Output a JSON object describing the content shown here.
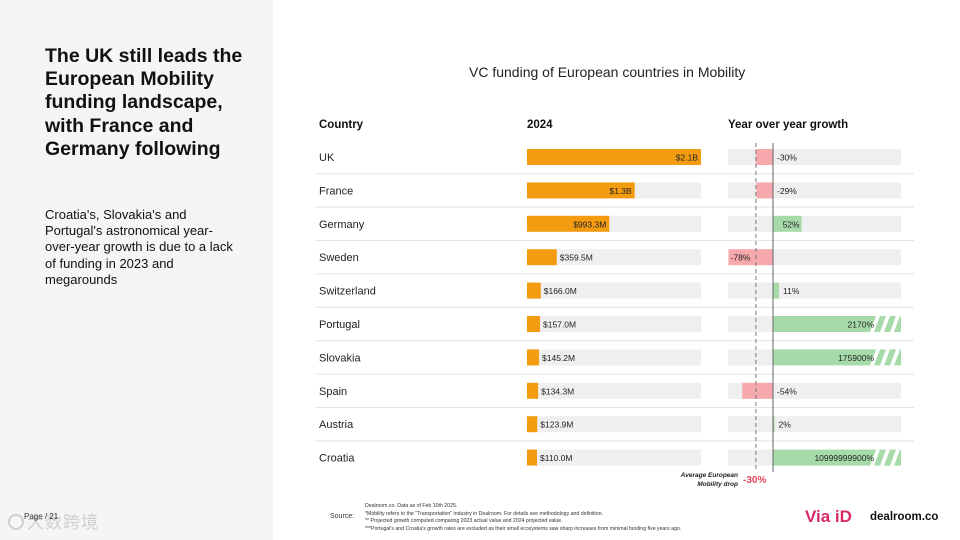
{
  "headline": "The UK still leads the European Mobility funding landscape, with France and Germany following",
  "subtext": "Croatia's, Slovakia's and Portugal's astronomical year-over-year growth is due to a lack of funding in 2023 and megarounds",
  "page_label": "Page / 21",
  "watermark": "大数跨境",
  "source_label": "Source:",
  "source_lines": [
    "Dealroom.co. Data as of Feb 10th 2025.",
    "*Mobility refers to the \"Transportation\" industry in Dealroom. For details see methodology and definition.",
    "** Projected growth computed comparing 2023 actual value and 2024 projected value.",
    "***Portugal's and Croatia's growth rates are excluded as their small ecosystems saw sharp increases from minimal funding five years ago."
  ],
  "logos": {
    "viaid": "Via iD",
    "dealroom": "dealroom.co"
  },
  "colors": {
    "funding_bar": "#f39c12",
    "track": "#efefef",
    "growth_negative": "#f7a8ad",
    "growth_positive": "#a6dba9",
    "avg_label": "#e84a5f",
    "logo_viaid": "#d62a6b"
  },
  "chart_data": {
    "type": "bar",
    "title": "VC funding of European countries in Mobility",
    "column_headers": {
      "country": "Country",
      "funding": "2024",
      "growth": "Year over year growth"
    },
    "categories": [
      "UK",
      "France",
      "Germany",
      "Sweden",
      "Switzerland",
      "Portugal",
      "Slovakia",
      "Spain",
      "Austria",
      "Croatia"
    ],
    "series": [
      {
        "name": "2024",
        "unit": "USD millions",
        "values": [
          2100,
          1300,
          993.3,
          359.5,
          166.0,
          157.0,
          145.2,
          134.3,
          123.9,
          110.0
        ],
        "labels": [
          "$2.1B",
          "$1.3B",
          "$993.3M",
          "$359.5M",
          "$166.0M",
          "$157.0M",
          "$145.2M",
          "$134.3M",
          "$123.9M",
          "$110.0M"
        ]
      },
      {
        "name": "Year over year growth",
        "unit": "percent",
        "values": [
          -30,
          -29,
          52,
          -78,
          11,
          2170,
          175900,
          -54,
          2,
          10999999900
        ],
        "labels": [
          "-30%",
          "-29%",
          "52%",
          "-78%",
          "11%",
          "2170%",
          "175900%",
          "-54%",
          "2%",
          "10999999900%"
        ],
        "truncated": [
          false,
          false,
          false,
          false,
          false,
          true,
          true,
          false,
          false,
          true
        ]
      }
    ],
    "average": {
      "label_lines": [
        "Average European",
        "Mobility drop"
      ],
      "value": -30,
      "value_label": "-30%"
    }
  }
}
